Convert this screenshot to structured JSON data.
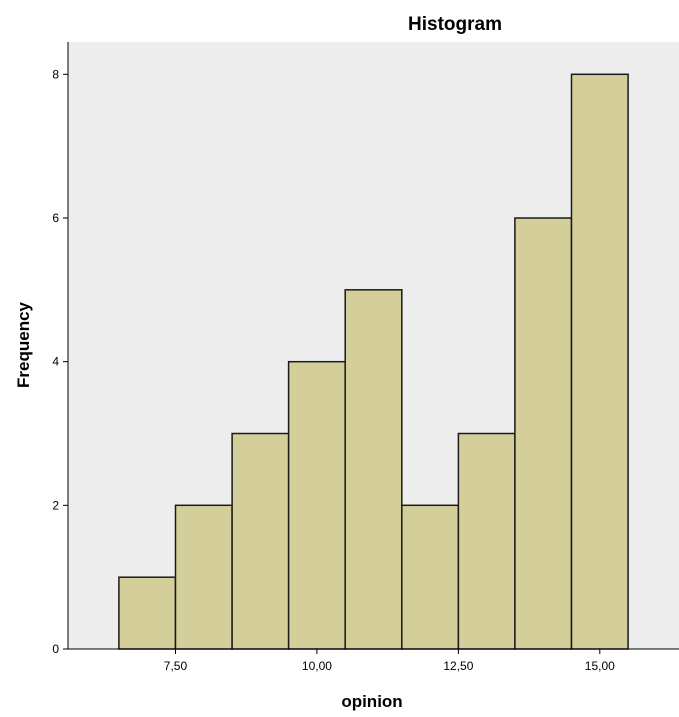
{
  "chart_data": {
    "type": "bar",
    "title": "Histogram",
    "xlabel": "opinion",
    "ylabel": "Frequency",
    "bins": [
      {
        "start": 6.5,
        "end": 7.5,
        "count": 1
      },
      {
        "start": 7.5,
        "end": 8.5,
        "count": 2
      },
      {
        "start": 8.5,
        "end": 9.5,
        "count": 3
      },
      {
        "start": 9.5,
        "end": 10.5,
        "count": 4
      },
      {
        "start": 10.5,
        "end": 11.5,
        "count": 5
      },
      {
        "start": 11.5,
        "end": 12.5,
        "count": 2
      },
      {
        "start": 12.5,
        "end": 13.5,
        "count": 3
      },
      {
        "start": 13.5,
        "end": 14.5,
        "count": 6
      },
      {
        "start": 14.5,
        "end": 15.5,
        "count": 8
      }
    ],
    "xlim": [
      5.6,
      16.4
    ],
    "ylim": [
      0,
      8.45
    ],
    "x_ticks": [
      {
        "value": 7.5,
        "label": "7,50"
      },
      {
        "value": 10.0,
        "label": "10,00"
      },
      {
        "value": 12.5,
        "label": "12,50"
      },
      {
        "value": 15.0,
        "label": "15,00"
      }
    ],
    "y_ticks": [
      {
        "value": 0,
        "label": "0"
      },
      {
        "value": 2,
        "label": "2"
      },
      {
        "value": 4,
        "label": "4"
      },
      {
        "value": 6,
        "label": "6"
      },
      {
        "value": 8,
        "label": "8"
      }
    ],
    "grid": false,
    "colors": {
      "bar_fill": "#d4cf9a",
      "bar_stroke": "#1a1a1a",
      "plot_background": "#ededed",
      "axis": "#000000"
    }
  }
}
